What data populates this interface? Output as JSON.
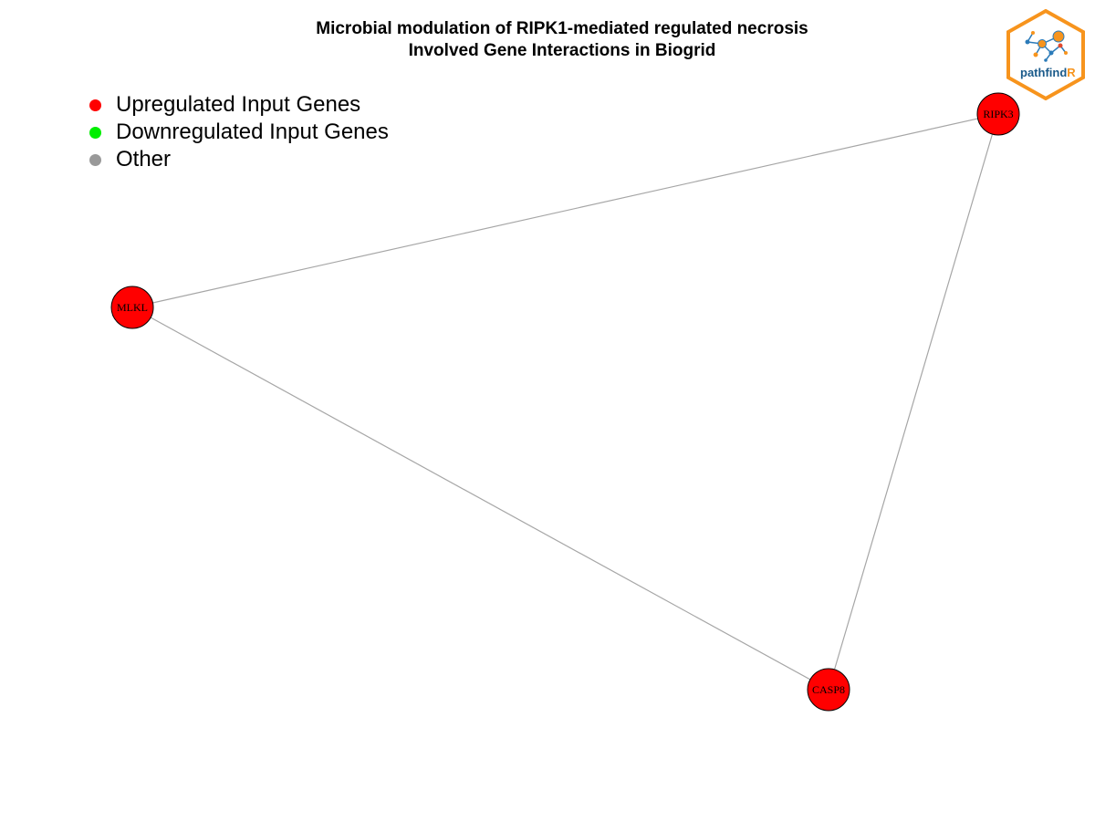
{
  "title": {
    "line1": "Microbial modulation of RIPK1-mediated regulated necrosis",
    "line2": "Involved Gene Interactions in Biogrid"
  },
  "legend": [
    {
      "label": "Upregulated Input Genes",
      "color": "#ff0000"
    },
    {
      "label": "Downregulated Input Genes",
      "color": "#00ee00"
    },
    {
      "label": "Other",
      "color": "#999999"
    }
  ],
  "network": {
    "nodes": [
      {
        "id": "RIPK3",
        "label": "RIPK3",
        "category": "upregulated",
        "color": "#ff0000"
      },
      {
        "id": "MLKL",
        "label": "MLKL",
        "category": "upregulated",
        "color": "#ff0000"
      },
      {
        "id": "CASP8",
        "label": "CASP8",
        "category": "upregulated",
        "color": "#ff0000"
      }
    ],
    "edges": [
      {
        "source": "MLKL",
        "target": "RIPK3"
      },
      {
        "source": "RIPK3",
        "target": "CASP8"
      },
      {
        "source": "MLKL",
        "target": "CASP8"
      }
    ],
    "edge_color": "#a6a6a6"
  },
  "logo": {
    "text_main": "pathfind",
    "text_accent": "R",
    "color_main": "#1a5a8a",
    "color_accent": "#f7941d"
  }
}
